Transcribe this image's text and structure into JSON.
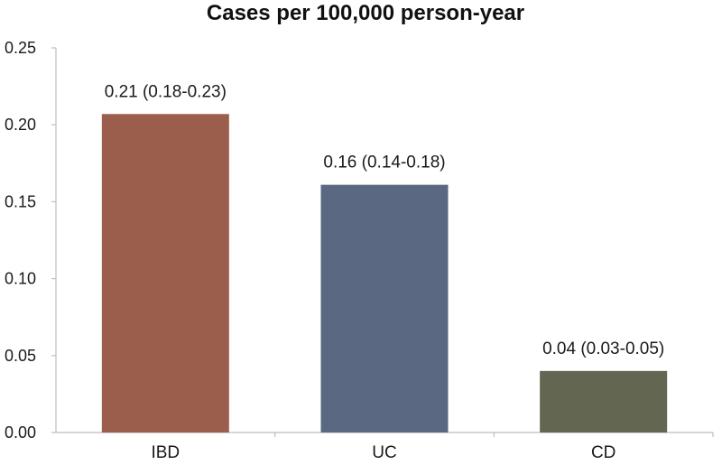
{
  "chart_data": {
    "type": "bar",
    "title": "Cases per 100,000 person-year",
    "xlabel": "",
    "ylabel": "",
    "categories": [
      "IBD",
      "UC",
      "CD"
    ],
    "values": [
      0.207,
      0.161,
      0.04
    ],
    "data_labels": [
      "0.21 (0.18-0.23)",
      "0.16 (0.14-0.18)",
      "0.04 (0.03-0.05)"
    ],
    "bar_colors": [
      "#9B5D4C",
      "#5A6882",
      "#636650"
    ],
    "ylim": [
      0,
      0.25
    ],
    "yticks": [
      "0.00",
      "0.05",
      "0.10",
      "0.15",
      "0.20",
      "0.25"
    ],
    "grid": false,
    "legend": "none"
  }
}
